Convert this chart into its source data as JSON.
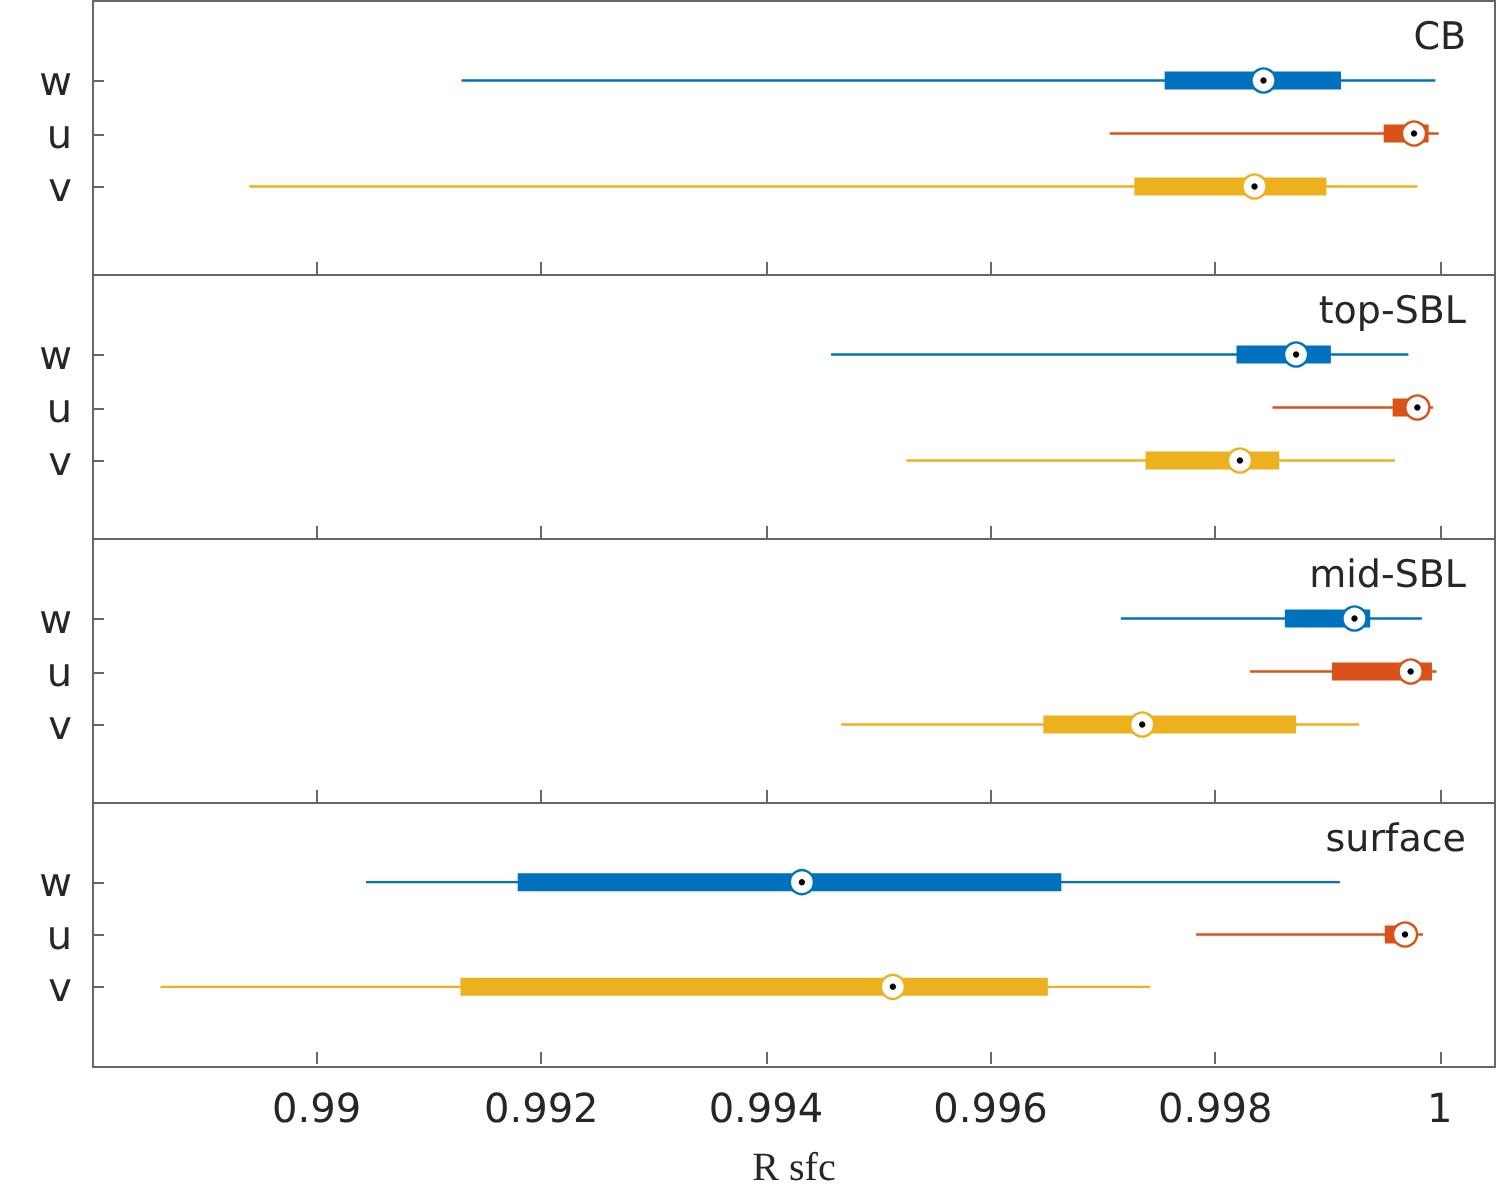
{
  "chart_data": [
    {
      "type": "box",
      "orientation": "horizontal",
      "title": "CB",
      "categories": [
        "w",
        "u",
        "v"
      ],
      "colors": [
        "#0072bd",
        "#d95319",
        "#edb120"
      ],
      "boxes": [
        {
          "low": 0.99129,
          "q1": 0.99755,
          "median": 0.99843,
          "q3": 0.99912,
          "high": 0.99996
        },
        {
          "low": 0.99706,
          "q1": 0.9995,
          "median": 0.99977,
          "q3": 0.9999,
          "high": 0.99999
        },
        {
          "low": 0.9894,
          "q1": 0.99728,
          "median": 0.99835,
          "q3": 0.99899,
          "high": 0.9998
        }
      ],
      "xlim": [
        0.988,
        1.0005
      ],
      "xticks": [
        0.99,
        0.992,
        0.994,
        0.996,
        0.998,
        1
      ],
      "tick_labels": "y"
    },
    {
      "type": "box",
      "orientation": "horizontal",
      "title": "top-SBL",
      "categories": [
        "w",
        "u",
        "v"
      ],
      "colors": [
        "#0072bd",
        "#d95319",
        "#edb120"
      ],
      "boxes": [
        {
          "low": 0.99458,
          "q1": 0.99819,
          "median": 0.99872,
          "q3": 0.99903,
          "high": 0.99972
        },
        {
          "low": 0.99851,
          "q1": 0.99958,
          "median": 0.9998,
          "q3": 0.99988,
          "high": 0.99994
        },
        {
          "low": 0.99525,
          "q1": 0.99738,
          "median": 0.99822,
          "q3": 0.99857,
          "high": 0.9996
        }
      ],
      "xlim": [
        0.988,
        1.0005
      ],
      "xticks": [
        0.99,
        0.992,
        0.994,
        0.996,
        0.998,
        1
      ],
      "tick_labels": "y"
    },
    {
      "type": "box",
      "orientation": "horizontal",
      "title": "mid-SBL",
      "categories": [
        "w",
        "u",
        "v"
      ],
      "colors": [
        "#0072bd",
        "#d95319",
        "#edb120"
      ],
      "boxes": [
        {
          "low": 0.99716,
          "q1": 0.99862,
          "median": 0.99924,
          "q3": 0.99938,
          "high": 0.99984
        },
        {
          "low": 0.99831,
          "q1": 0.99904,
          "median": 0.99974,
          "q3": 0.99993,
          "high": 0.99997
        },
        {
          "low": 0.99467,
          "q1": 0.99647,
          "median": 0.99735,
          "q3": 0.99872,
          "high": 0.99928
        }
      ],
      "xlim": [
        0.988,
        1.0005
      ],
      "xticks": [
        0.99,
        0.992,
        0.994,
        0.996,
        0.998,
        1
      ],
      "tick_labels": "y"
    },
    {
      "type": "box",
      "orientation": "horizontal",
      "title": "surface",
      "xlabel": "R sfc",
      "categories": [
        "w",
        "u",
        "v"
      ],
      "colors": [
        "#0072bd",
        "#d95319",
        "#edb120"
      ],
      "boxes": [
        {
          "low": 0.99044,
          "q1": 0.99179,
          "median": 0.99432,
          "q3": 0.99663,
          "high": 0.99911
        },
        {
          "low": 0.99783,
          "q1": 0.99951,
          "median": 0.99969,
          "q3": 0.99978,
          "high": 0.99985
        },
        {
          "low": 0.98861,
          "q1": 0.99128,
          "median": 0.99513,
          "q3": 0.99651,
          "high": 0.99742
        }
      ],
      "xlim": [
        0.988,
        1.0005
      ],
      "xticks": [
        0.99,
        0.992,
        0.994,
        0.996,
        0.998,
        1
      ]
    }
  ]
}
